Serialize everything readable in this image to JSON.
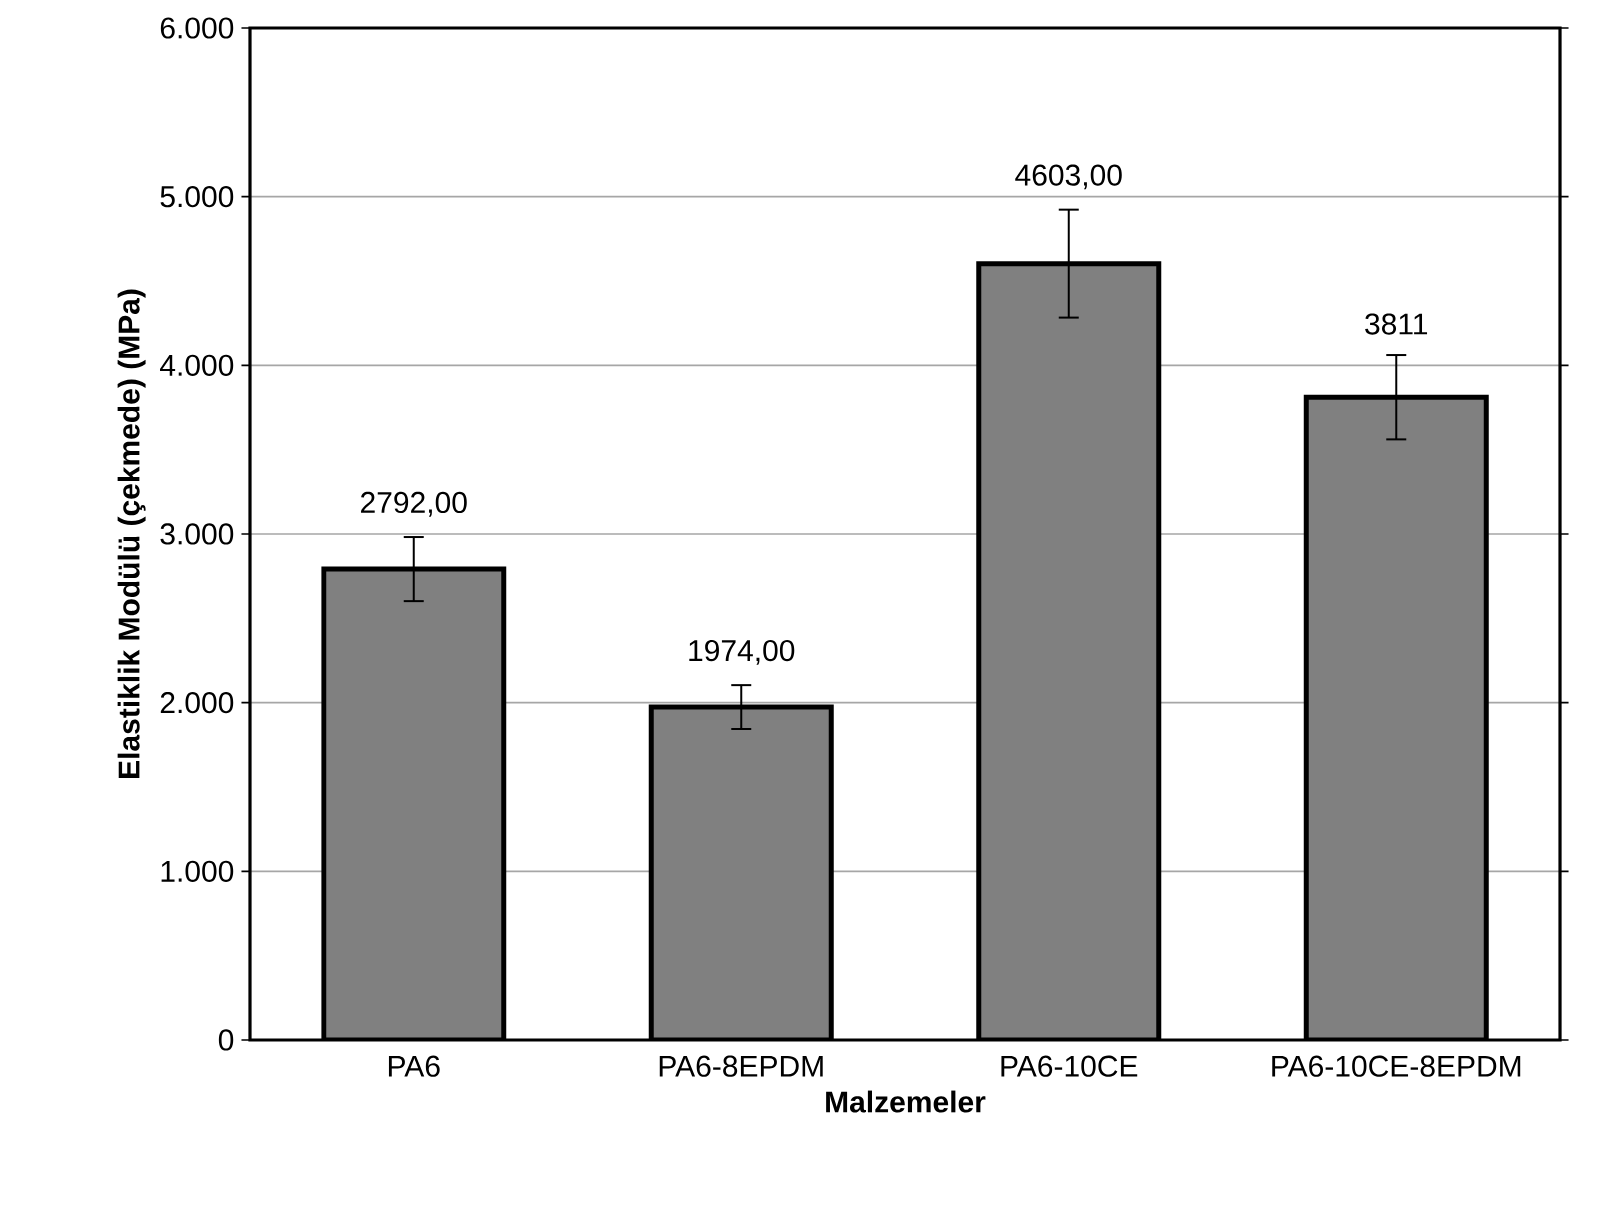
{
  "chart_data": {
    "type": "bar",
    "xlabel": "Malzemeler",
    "ylabel": "Elastiklik Modülü (çekmede) (MPa)",
    "categories": [
      "PA6",
      "PA6-8EPDM",
      "PA6-10CE",
      "PA6-10CE-8EPDM"
    ],
    "values": [
      2792,
      1974,
      4603,
      3811
    ],
    "errors": [
      190,
      130,
      320,
      250
    ],
    "value_labels": [
      "2792,00",
      "1974,00",
      "4603,00",
      "3811"
    ],
    "color": "#808080",
    "ylim": [
      0,
      6000
    ],
    "yticks": [
      0,
      {
        "value": 1000,
        "label": "1.000"
      },
      {
        "value": 2000,
        "label": "2.000"
      },
      {
        "value": 3000,
        "label": "3.000"
      },
      {
        "value": 4000,
        "label": "4.000"
      },
      {
        "value": 5000,
        "label": "5.000"
      },
      {
        "value": 6000,
        "label": "6.000"
      }
    ],
    "grid": "y"
  }
}
